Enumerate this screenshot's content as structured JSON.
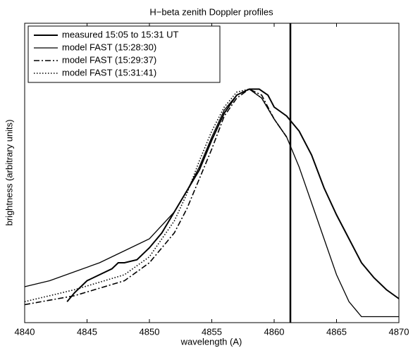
{
  "chart_data": {
    "type": "line",
    "title": "H−beta zenith Doppler profiles",
    "xlabel": "wavelength (A)",
    "ylabel": "brightness (arbitrary units)",
    "xlim": [
      4840,
      4870
    ],
    "xticks": [
      4840,
      4845,
      4850,
      4855,
      4860,
      4865,
      4870
    ],
    "ylim": [
      0,
      1
    ],
    "vline": 4861.3,
    "legend": "upper left",
    "series": [
      {
        "name": "measured 15:05 to 15:31 UT",
        "color": "#000000",
        "dash": "solid",
        "width": 2,
        "x": [
          4843.4,
          4844,
          4845,
          4846,
          4847,
          4847.5,
          4848,
          4849,
          4850,
          4851,
          4852,
          4853,
          4854,
          4855,
          4856,
          4857,
          4858,
          4858.8,
          4859.5,
          4860,
          4861,
          4862,
          4863,
          4864,
          4865,
          4866,
          4867,
          4868,
          4869,
          4870
        ],
        "values": [
          0.07,
          0.1,
          0.14,
          0.16,
          0.18,
          0.2,
          0.2,
          0.21,
          0.25,
          0.3,
          0.37,
          0.44,
          0.51,
          0.61,
          0.7,
          0.76,
          0.78,
          0.78,
          0.76,
          0.72,
          0.69,
          0.64,
          0.56,
          0.45,
          0.36,
          0.28,
          0.2,
          0.15,
          0.11,
          0.08
        ]
      },
      {
        "name": "model FAST (15:28:30)",
        "color": "#000000",
        "dash": "solid",
        "width": 1.3,
        "x": [
          4840,
          4842,
          4844,
          4846,
          4848,
          4850,
          4852,
          4853,
          4854,
          4855,
          4856,
          4857,
          4858,
          4859,
          4860,
          4861,
          4862,
          4863,
          4864,
          4865,
          4866,
          4867,
          4868,
          4870
        ],
        "values": [
          0.12,
          0.14,
          0.17,
          0.2,
          0.24,
          0.28,
          0.37,
          0.44,
          0.52,
          0.62,
          0.71,
          0.76,
          0.78,
          0.75,
          0.68,
          0.62,
          0.52,
          0.4,
          0.28,
          0.16,
          0.07,
          0.02,
          0.02,
          0.02
        ]
      },
      {
        "name": "model FAST (15:29:37)",
        "color": "#000000",
        "dash": "dashdot",
        "width": 1.6,
        "x": [
          4840,
          4844,
          4848,
          4850,
          4852,
          4853,
          4854,
          4855,
          4856,
          4857,
          4858,
          4859,
          4860,
          4861
        ],
        "values": [
          0.06,
          0.09,
          0.14,
          0.2,
          0.3,
          0.38,
          0.48,
          0.58,
          0.69,
          0.75,
          0.78,
          0.76,
          0.68,
          0.62
        ]
      },
      {
        "name": "model FAST (15:31:41)",
        "color": "#000000",
        "dash": "dotted",
        "width": 1.6,
        "x": [
          4840,
          4844,
          4848,
          4850,
          4852,
          4853,
          4854,
          4855,
          4856,
          4857,
          4858,
          4859,
          4860,
          4861
        ],
        "values": [
          0.07,
          0.11,
          0.16,
          0.22,
          0.34,
          0.43,
          0.54,
          0.64,
          0.72,
          0.77,
          0.78,
          0.75,
          0.68,
          0.62
        ]
      }
    ]
  }
}
